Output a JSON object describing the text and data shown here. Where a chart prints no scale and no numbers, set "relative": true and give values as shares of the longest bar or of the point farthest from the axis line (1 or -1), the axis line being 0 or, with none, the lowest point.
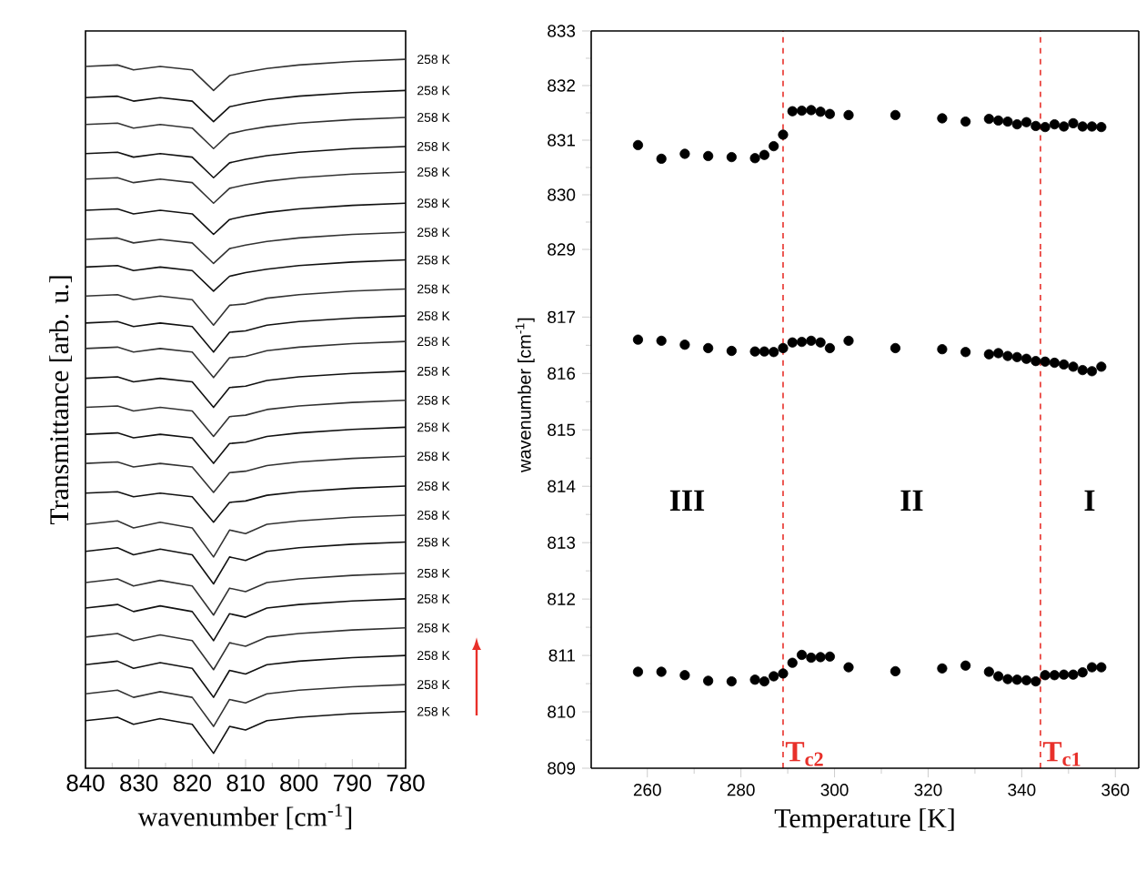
{
  "chart_data": [
    {
      "type": "line",
      "relative": true,
      "xlabel": "wavenumber [cm$^{-1}$]",
      "ylabel": "Transmittance [arb. u.]",
      "x": [
        840,
        834,
        831,
        826,
        820,
        816,
        813,
        810,
        806,
        800,
        790,
        780
      ],
      "xlim": [
        840,
        780
      ],
      "xticks": [
        840,
        830,
        820,
        810,
        800,
        790,
        780
      ],
      "series": [
        {
          "name": "258 K",
          "color": "#333333",
          "values": [
            0.99,
            0.992,
            0.985,
            0.99,
            0.985,
            0.956,
            0.977,
            0.982,
            0.987,
            0.992,
            0.997,
            1.0
          ]
        },
        {
          "name": "258 K",
          "color": "#111111",
          "values": [
            0.946,
            0.948,
            0.941,
            0.946,
            0.941,
            0.912,
            0.933,
            0.938,
            0.943,
            0.948,
            0.953,
            0.956
          ]
        },
        {
          "name": "258 K",
          "color": "#333333",
          "values": [
            0.908,
            0.91,
            0.903,
            0.908,
            0.903,
            0.874,
            0.895,
            0.9,
            0.905,
            0.91,
            0.915,
            0.918
          ]
        },
        {
          "name": "258 K",
          "color": "#111111",
          "values": [
            0.867,
            0.869,
            0.862,
            0.867,
            0.862,
            0.833,
            0.854,
            0.859,
            0.864,
            0.869,
            0.874,
            0.877
          ]
        },
        {
          "name": "258 K",
          "color": "#333333",
          "values": [
            0.831,
            0.833,
            0.826,
            0.831,
            0.826,
            0.797,
            0.818,
            0.823,
            0.828,
            0.833,
            0.838,
            0.841
          ]
        },
        {
          "name": "258 K",
          "color": "#111111",
          "values": [
            0.787,
            0.789,
            0.782,
            0.787,
            0.782,
            0.753,
            0.774,
            0.779,
            0.784,
            0.789,
            0.794,
            0.797
          ]
        },
        {
          "name": "258 K",
          "color": "#333333",
          "values": [
            0.746,
            0.748,
            0.741,
            0.746,
            0.741,
            0.712,
            0.733,
            0.738,
            0.743,
            0.748,
            0.753,
            0.756
          ]
        },
        {
          "name": "258 K",
          "color": "#111111",
          "values": [
            0.707,
            0.709,
            0.702,
            0.707,
            0.702,
            0.673,
            0.694,
            0.699,
            0.704,
            0.709,
            0.714,
            0.717
          ]
        },
        {
          "name": "258 K",
          "color": "#333333",
          "values": [
            0.666,
            0.668,
            0.661,
            0.666,
            0.661,
            0.625,
            0.653,
            0.655,
            0.663,
            0.668,
            0.673,
            0.676
          ]
        },
        {
          "name": "258 K",
          "color": "#111111",
          "values": [
            0.628,
            0.63,
            0.623,
            0.628,
            0.623,
            0.587,
            0.615,
            0.617,
            0.625,
            0.63,
            0.635,
            0.638
          ]
        },
        {
          "name": "258 K",
          "color": "#333333",
          "values": [
            0.592,
            0.594,
            0.587,
            0.592,
            0.587,
            0.551,
            0.579,
            0.581,
            0.589,
            0.594,
            0.599,
            0.602
          ]
        },
        {
          "name": "258 K",
          "color": "#111111",
          "values": [
            0.55,
            0.552,
            0.545,
            0.55,
            0.545,
            0.509,
            0.537,
            0.539,
            0.547,
            0.552,
            0.557,
            0.56
          ]
        },
        {
          "name": "258 K",
          "color": "#333333",
          "values": [
            0.509,
            0.511,
            0.504,
            0.509,
            0.504,
            0.468,
            0.496,
            0.498,
            0.506,
            0.511,
            0.516,
            0.519
          ]
        },
        {
          "name": "258 K",
          "color": "#111111",
          "values": [
            0.471,
            0.473,
            0.466,
            0.471,
            0.466,
            0.43,
            0.458,
            0.46,
            0.468,
            0.473,
            0.478,
            0.481
          ]
        },
        {
          "name": "258 K",
          "color": "#333333",
          "values": [
            0.43,
            0.432,
            0.425,
            0.43,
            0.425,
            0.389,
            0.417,
            0.419,
            0.427,
            0.432,
            0.437,
            0.44
          ]
        },
        {
          "name": "258 K",
          "color": "#111111",
          "values": [
            0.388,
            0.39,
            0.383,
            0.388,
            0.383,
            0.347,
            0.375,
            0.377,
            0.385,
            0.39,
            0.395,
            0.398
          ]
        },
        {
          "name": "258 K",
          "color": "#333333",
          "values": [
            0.344,
            0.349,
            0.339,
            0.347,
            0.339,
            0.298,
            0.336,
            0.331,
            0.344,
            0.349,
            0.354,
            0.357
          ]
        },
        {
          "name": "258 K",
          "color": "#111111",
          "values": [
            0.306,
            0.311,
            0.301,
            0.309,
            0.301,
            0.26,
            0.298,
            0.293,
            0.306,
            0.311,
            0.316,
            0.319
          ]
        },
        {
          "name": "258 K",
          "color": "#333333",
          "values": [
            0.262,
            0.267,
            0.257,
            0.265,
            0.257,
            0.216,
            0.254,
            0.249,
            0.262,
            0.267,
            0.272,
            0.275
          ]
        },
        {
          "name": "258 K",
          "color": "#111111",
          "values": [
            0.226,
            0.231,
            0.221,
            0.229,
            0.221,
            0.18,
            0.218,
            0.213,
            0.226,
            0.231,
            0.236,
            0.239
          ]
        },
        {
          "name": "258 K",
          "color": "#333333",
          "values": [
            0.185,
            0.19,
            0.18,
            0.188,
            0.18,
            0.139,
            0.177,
            0.172,
            0.185,
            0.19,
            0.195,
            0.198
          ]
        },
        {
          "name": "258 K",
          "color": "#111111",
          "values": [
            0.146,
            0.151,
            0.141,
            0.149,
            0.141,
            0.1,
            0.138,
            0.133,
            0.146,
            0.151,
            0.156,
            0.159
          ]
        },
        {
          "name": "258 K",
          "color": "#333333",
          "values": [
            0.105,
            0.11,
            0.1,
            0.108,
            0.1,
            0.059,
            0.097,
            0.092,
            0.105,
            0.11,
            0.115,
            0.118
          ]
        },
        {
          "name": "258 K",
          "color": "#111111",
          "values": [
            0.067,
            0.072,
            0.062,
            0.07,
            0.062,
            0.021,
            0.059,
            0.054,
            0.067,
            0.072,
            0.077,
            0.08
          ]
        }
      ]
    },
    {
      "type": "scatter",
      "marker": "circle",
      "tick_labels": "y",
      "x": [
        258,
        263,
        268,
        273,
        278,
        283,
        285,
        287,
        289,
        291,
        293,
        295,
        297,
        299,
        303,
        313,
        323,
        328,
        333,
        335,
        337,
        339,
        341,
        343,
        345,
        347,
        349,
        351,
        353,
        355,
        357
      ],
      "xlim": [
        248,
        365
      ],
      "ylim": [
        829,
        833
      ],
      "yticks": [
        829,
        830,
        831,
        832,
        833
      ],
      "ref_lines": [
        {
          "axis": "x",
          "value": 289,
          "color": "#e8302a",
          "line_style": "dashed"
        },
        {
          "axis": "x",
          "value": 344,
          "color": "#e8302a",
          "line_style": "dashed"
        }
      ],
      "series": [
        {
          "color": "#000000",
          "values": [
            830.91,
            830.66,
            830.75,
            830.71,
            830.69,
            830.67,
            830.73,
            830.89,
            831.1,
            831.53,
            831.54,
            831.55,
            831.52,
            831.48,
            831.46,
            831.46,
            831.4,
            831.34,
            831.39,
            831.36,
            831.34,
            831.29,
            831.33,
            831.26,
            831.24,
            831.29,
            831.25,
            831.31,
            831.25,
            831.25,
            831.24
          ]
        }
      ]
    },
    {
      "type": "scatter",
      "marker": "circle",
      "xlabel": "Temperature [K]",
      "ylabel": "wavenumber [cm$^{-1}$]",
      "x": [
        258,
        263,
        268,
        273,
        278,
        283,
        285,
        287,
        289,
        291,
        293,
        295,
        297,
        299,
        303,
        313,
        323,
        328,
        333,
        335,
        337,
        339,
        341,
        343,
        345,
        347,
        349,
        351,
        353,
        355,
        357
      ],
      "xlim": [
        248,
        365
      ],
      "xticks": [
        260,
        280,
        300,
        320,
        340,
        360
      ],
      "ylim": [
        809,
        818.2
      ],
      "yticks": [
        809,
        810,
        811,
        812,
        813,
        814,
        815,
        816,
        817
      ],
      "ref_lines": [
        {
          "axis": "x",
          "value": 289,
          "label": "T$_{c2}$",
          "color": "#e8302a",
          "line_style": "dashed"
        },
        {
          "axis": "x",
          "value": 344,
          "label": "T$_{c1}$",
          "color": "#e8302a",
          "line_style": "dashed"
        }
      ],
      "annotations": [
        "III",
        "II",
        "I"
      ],
      "series": [
        {
          "color": "#000000",
          "values": [
            816.6,
            816.58,
            816.51,
            816.45,
            816.4,
            816.39,
            816.39,
            816.38,
            816.45,
            816.55,
            816.56,
            816.58,
            816.55,
            816.45,
            816.58,
            816.45,
            816.43,
            816.38,
            816.34,
            816.36,
            816.31,
            816.29,
            816.26,
            816.22,
            816.21,
            816.19,
            816.16,
            816.12,
            816.06,
            816.04,
            816.12
          ]
        },
        {
          "color": "#000000",
          "values": [
            810.71,
            810.71,
            810.65,
            810.55,
            810.54,
            810.57,
            810.54,
            810.63,
            810.68,
            810.87,
            811.01,
            810.96,
            810.97,
            810.98,
            810.79,
            810.72,
            810.77,
            810.82,
            810.71,
            810.63,
            810.58,
            810.57,
            810.56,
            810.54,
            810.65,
            810.65,
            810.66,
            810.66,
            810.7,
            810.79,
            810.79
          ]
        }
      ]
    }
  ]
}
